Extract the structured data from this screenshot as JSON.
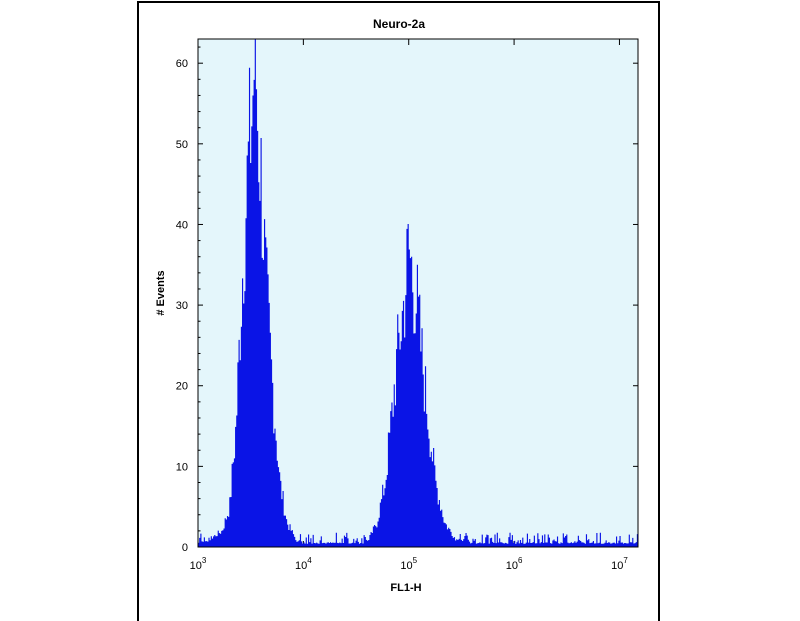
{
  "chart_data": {
    "type": "area",
    "title": "Neuro-2a",
    "xlabel": "FL1-H",
    "ylabel": "# Events",
    "x_scale": "log",
    "xlim": [
      1000,
      15000000
    ],
    "ylim": [
      0,
      63
    ],
    "x_ticks": [
      {
        "value": 1000,
        "base": "10",
        "exp": "3"
      },
      {
        "value": 10000,
        "base": "10",
        "exp": "4"
      },
      {
        "value": 100000,
        "base": "10",
        "exp": "5"
      },
      {
        "value": 1000000,
        "base": "10",
        "exp": "6"
      },
      {
        "value": 10000000,
        "base": "10",
        "exp": "7"
      }
    ],
    "y_ticks": [
      0,
      10,
      20,
      30,
      40,
      50,
      60
    ],
    "plot_background": "#e4f6fb",
    "fill_color": "#0a14e6",
    "series": [
      {
        "x": [
          1000,
          1300,
          1700,
          2000,
          2300,
          2600,
          2900,
          3100,
          3300,
          3500,
          3700,
          3900,
          4100,
          4400,
          4800,
          5300,
          6000,
          7000,
          8500,
          10000,
          20000,
          40000,
          50000,
          60000,
          70000,
          80000,
          90000,
          100000,
          110000,
          120000,
          130000,
          150000,
          180000,
          220000,
          280000,
          350000,
          1000000,
          15000000
        ],
        "y": [
          0.5,
          1,
          2,
          5,
          15,
          32,
          44,
          50,
          55,
          63,
          52,
          48,
          42,
          33,
          25,
          17,
          8,
          3,
          1,
          0.5,
          0.5,
          0.5,
          3,
          8,
          17,
          25,
          30,
          37,
          33,
          30,
          25,
          17,
          8,
          3,
          1,
          0.5,
          0.5,
          0.5
        ]
      }
    ]
  }
}
